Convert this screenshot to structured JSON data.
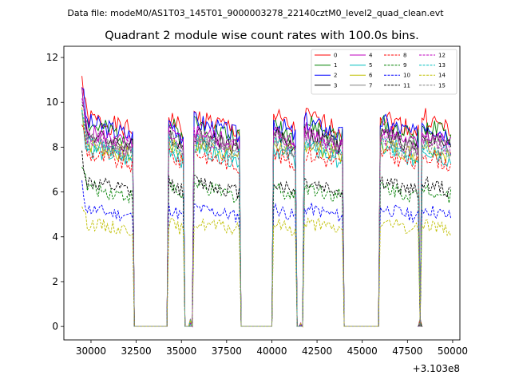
{
  "suptitle": "Data file: modeM0/AS1T03_145T01_9000003278_22140cztM0_level2_quad_clean.evt",
  "chart_data": {
    "type": "line",
    "title": "Quadrant 2 module wise count rates with 100.0s bins.",
    "xlabel": "",
    "ylabel": "",
    "x_offset_label": "+3.103e8",
    "xlim": [
      28500,
      50400
    ],
    "ylim": [
      -0.6,
      12.5
    ],
    "x_ticks": [
      30000,
      32500,
      35000,
      37500,
      40000,
      42500,
      45000,
      47500,
      50000
    ],
    "x_tick_labels": [
      "30000",
      "32500",
      "35000",
      "37500",
      "40000",
      "42500",
      "45000",
      "47500",
      "50000"
    ],
    "y_ticks": [
      0,
      2,
      4,
      6,
      8,
      10,
      12
    ],
    "y_tick_labels": [
      "0",
      "2",
      "4",
      "6",
      "8",
      "10",
      "12"
    ],
    "legend_position": "upper-right",
    "segments": [
      [
        29500,
        32300
      ],
      [
        34300,
        35100
      ],
      [
        35500,
        35500
      ],
      [
        35700,
        38200
      ],
      [
        40100,
        41300
      ],
      [
        41600,
        41600
      ],
      [
        41800,
        43900
      ],
      [
        46000,
        48100
      ],
      [
        48200,
        48200
      ],
      [
        48300,
        49900
      ]
    ],
    "gap_value": 0,
    "series": [
      {
        "name": "0",
        "color": "#ff0000",
        "dash": "solid",
        "base": 8.7,
        "amp": 0.45,
        "seed": 1
      },
      {
        "name": "1",
        "color": "#008000",
        "dash": "solid",
        "base": 8.4,
        "amp": 0.45,
        "seed": 2
      },
      {
        "name": "2",
        "color": "#0000ff",
        "dash": "solid",
        "base": 8.5,
        "amp": 0.45,
        "seed": 3
      },
      {
        "name": "3",
        "color": "#000000",
        "dash": "solid",
        "base": 8.0,
        "amp": 0.4,
        "seed": 4
      },
      {
        "name": "4",
        "color": "#bf00bf",
        "dash": "solid",
        "base": 8.1,
        "amp": 0.4,
        "seed": 5
      },
      {
        "name": "5",
        "color": "#00bfbf",
        "dash": "solid",
        "base": 7.4,
        "amp": 0.4,
        "seed": 6
      },
      {
        "name": "6",
        "color": "#bfbf00",
        "dash": "solid",
        "base": 7.6,
        "amp": 0.4,
        "seed": 7
      },
      {
        "name": "7",
        "color": "#808080",
        "dash": "solid",
        "base": 7.9,
        "amp": 0.4,
        "seed": 8
      },
      {
        "name": "8",
        "color": "#ff0000",
        "dash": "dashed",
        "base": 7.2,
        "amp": 0.4,
        "seed": 9
      },
      {
        "name": "9",
        "color": "#008000",
        "dash": "dashed",
        "base": 5.8,
        "amp": 0.35,
        "seed": 10
      },
      {
        "name": "10",
        "color": "#0000ff",
        "dash": "dashed",
        "base": 4.9,
        "amp": 0.3,
        "seed": 11
      },
      {
        "name": "11",
        "color": "#000000",
        "dash": "dashed",
        "base": 6.0,
        "amp": 0.35,
        "seed": 12
      },
      {
        "name": "12",
        "color": "#bf00bf",
        "dash": "dashed",
        "base": 7.9,
        "amp": 0.4,
        "seed": 13
      },
      {
        "name": "13",
        "color": "#00bfbf",
        "dash": "dashed",
        "base": 7.6,
        "amp": 0.4,
        "seed": 14
      },
      {
        "name": "14",
        "color": "#bfbf00",
        "dash": "dashed",
        "base": 4.3,
        "amp": 0.3,
        "seed": 15
      },
      {
        "name": "15",
        "color": "#808080",
        "dash": "dashed",
        "base": 7.7,
        "amp": 0.4,
        "seed": 16
      }
    ]
  }
}
